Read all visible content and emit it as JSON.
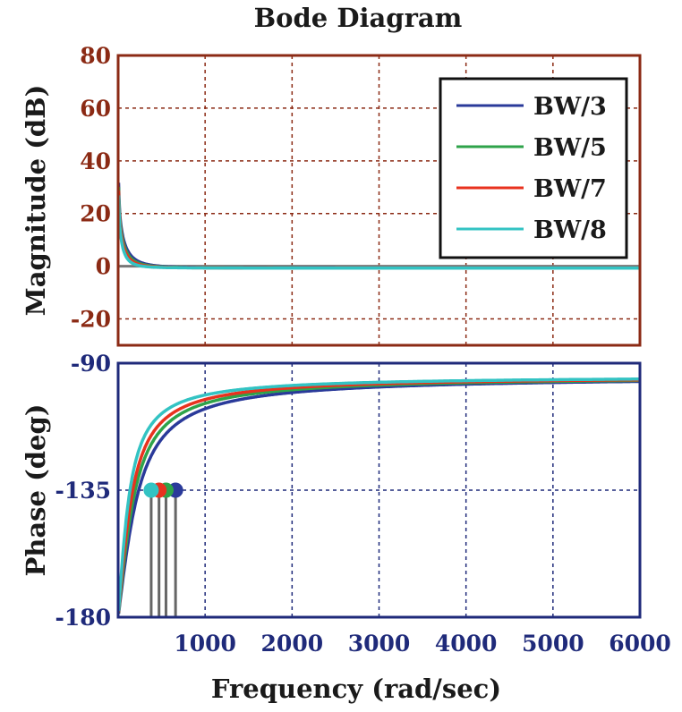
{
  "chart_data": {
    "type": "line",
    "title": "Bode Diagram",
    "xlabel": "Frequency  (rad/sec)",
    "xlim": [
      0,
      6000
    ],
    "x_ticks": [
      1000,
      2000,
      3000,
      4000,
      5000,
      6000
    ],
    "x_tick_labels": [
      "1000",
      "2000",
      "3000",
      "4000",
      "5000",
      "6000"
    ],
    "series": [
      {
        "name": "BW/3",
        "color": "#2a3a9a",
        "crossover": 660
      },
      {
        "name": "BW/5",
        "color": "#2ea34a",
        "crossover": 550
      },
      {
        "name": "BW/7",
        "color": "#e8321e",
        "crossover": 470
      },
      {
        "name": "BW/8",
        "color": "#33c3c3",
        "crossover": 380
      }
    ],
    "legend": {
      "position": "top-right",
      "entries": [
        "BW/3",
        "BW/5",
        "BW/7",
        "BW/8"
      ]
    },
    "magnitude": {
      "ylabel": "Magnitude (dB)",
      "ylim": [
        -30,
        80
      ],
      "y_ticks": [
        80,
        60,
        40,
        20,
        0,
        -20
      ],
      "y_tick_labels": [
        "80",
        "60",
        "40",
        "20",
        "0",
        "-20"
      ],
      "grid": true,
      "frame_color": "#8b2a14",
      "reference_line": 0
    },
    "phase": {
      "ylabel": "Phase (deg)",
      "ylim": [
        -180,
        -90
      ],
      "y_ticks": [
        -90,
        -135,
        -180
      ],
      "y_tick_labels": [
        "-90",
        "-135",
        "-180"
      ],
      "grid": true,
      "frame_color": "#1f2a7a",
      "marker_phase": -135
    }
  }
}
